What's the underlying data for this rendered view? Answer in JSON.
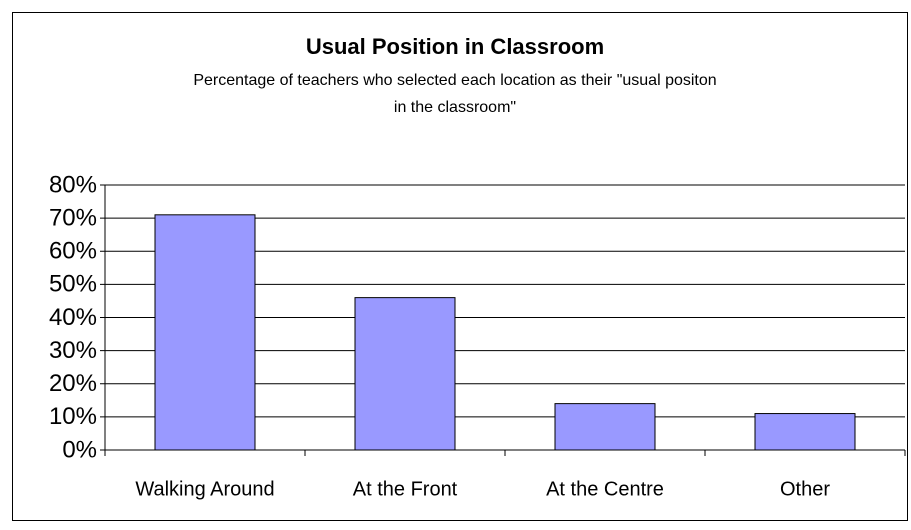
{
  "chart_data": {
    "type": "bar",
    "title": "Usual Position in Classroom",
    "subtitle": [
      "Percentage of teachers who selected each location as their \"usual positon",
      "in the classroom\""
    ],
    "categories": [
      "Walking Around",
      "At the Front",
      "At the Centre",
      "Other"
    ],
    "values": [
      71,
      46,
      14,
      11
    ],
    "color": "#9999ff",
    "ylim": [
      0,
      80
    ],
    "yticks": [
      {
        "value": 0,
        "label": "0%"
      },
      {
        "value": 10,
        "label": "10%"
      },
      {
        "value": 20,
        "label": "20%"
      },
      {
        "value": 30,
        "label": "30%"
      },
      {
        "value": 40,
        "label": "40%"
      },
      {
        "value": 50,
        "label": "50%"
      },
      {
        "value": 60,
        "label": "60%"
      },
      {
        "value": 70,
        "label": "70%"
      },
      {
        "value": 80,
        "label": "80%"
      }
    ],
    "grid": true
  }
}
